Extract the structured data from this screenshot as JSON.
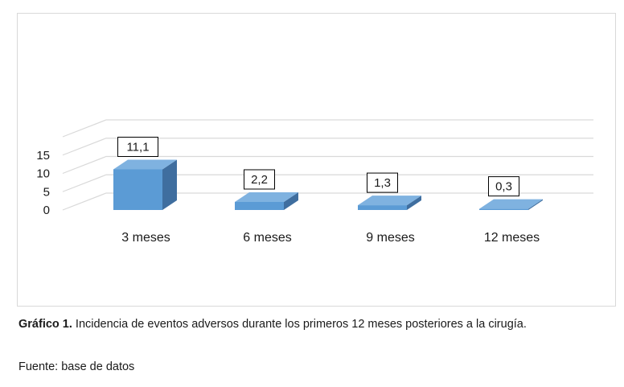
{
  "chart_data": {
    "type": "bar",
    "categories": [
      "3 meses",
      "6 meses",
      "9 meses",
      "12 meses"
    ],
    "values": [
      11.1,
      2.2,
      1.3,
      0.3
    ],
    "data_labels": [
      "11,1",
      "2,2",
      "1,3",
      "0,3"
    ],
    "yticks": [
      "0",
      "5",
      "10",
      "15"
    ],
    "ylim": [
      0,
      20
    ],
    "grid": true,
    "colors": {
      "front": "#5b9bd5",
      "side": "#3f6e9f",
      "top": "#7fb2e0",
      "grid": "#d9d9d9"
    }
  },
  "caption": {
    "label": "Gráfico 1.",
    "text": " Incidencia de eventos adversos durante los primeros 12 meses posteriores a la cirugía."
  },
  "source": "Fuente: base de datos"
}
